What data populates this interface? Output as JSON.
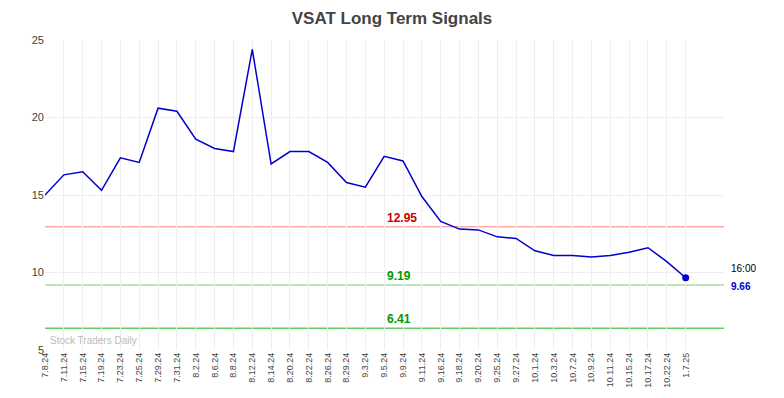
{
  "chart_data": {
    "type": "line",
    "title": "VSAT Long Term Signals",
    "categories": [
      "7.8.24",
      "7.11.24",
      "7.15.24",
      "7.19.24",
      "7.23.24",
      "7.25.24",
      "7.29.24",
      "7.31.24",
      "8.2.24",
      "8.6.24",
      "8.8.24",
      "8.12.24",
      "8.14.24",
      "8.20.24",
      "8.22.24",
      "8.26.24",
      "8.29.24",
      "9.3.24",
      "9.5.24",
      "9.9.24",
      "9.11.24",
      "9.16.24",
      "9.18.24",
      "9.20.24",
      "9.25.24",
      "9.27.24",
      "10.1.24",
      "10.3.24",
      "10.7.24",
      "10.9.24",
      "10.11.24",
      "10.15.24",
      "10.17.24",
      "10.22.24",
      "1.7.25"
    ],
    "values": [
      15.0,
      16.3,
      16.5,
      15.3,
      17.4,
      17.1,
      20.6,
      20.4,
      18.6,
      18.0,
      17.8,
      24.4,
      17.0,
      17.8,
      17.8,
      17.1,
      15.8,
      15.5,
      17.5,
      17.2,
      14.9,
      13.3,
      12.8,
      12.75,
      12.3,
      12.2,
      11.4,
      11.1,
      11.1,
      11.0,
      11.1,
      11.3,
      11.6,
      10.7,
      9.66
    ],
    "color": "#0000cc",
    "hlines": [
      {
        "value": 12.95,
        "color": "#ffaaaa",
        "label_color": "#cc0000"
      },
      {
        "value": 9.19,
        "color": "#aaddaa",
        "label_color": "#009900"
      },
      {
        "value": 6.41,
        "color": "#66cc66",
        "label_color": "#009900"
      }
    ],
    "watermark": "Stock Traders Daily",
    "watermark_color": "#bbbbbb",
    "end_label": {
      "time": "16:00",
      "value": 9.66
    },
    "ylim": [
      5,
      25
    ],
    "yticks": [
      5,
      10,
      15,
      20,
      25
    ],
    "grid": true
  }
}
